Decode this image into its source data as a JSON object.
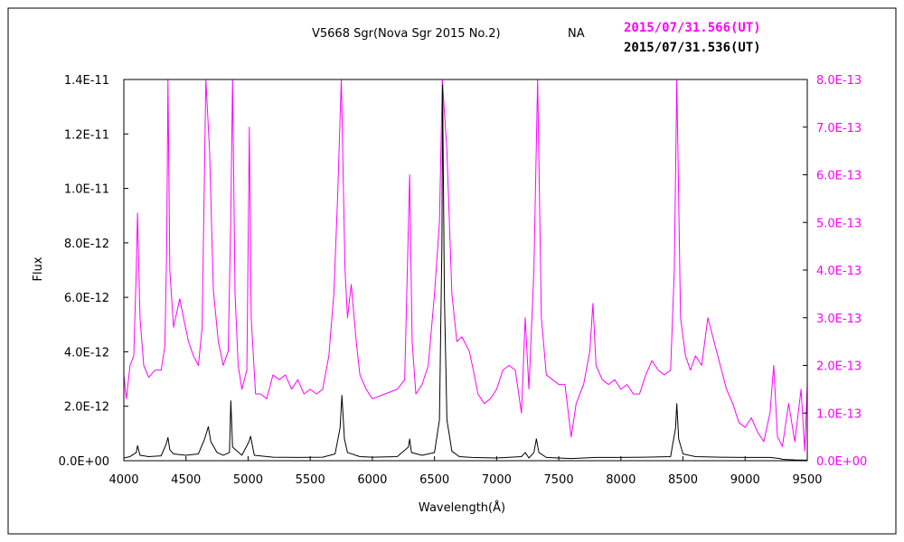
{
  "chart_data": {
    "type": "line",
    "title": "V5668 Sgr(Nova Sgr 2015 No.2)",
    "subtitle": "NA",
    "xlabel": "Wavelength(Å)",
    "ylabel": "Flux",
    "xlim": [
      4000,
      9500
    ],
    "ylim_left": [
      0,
      1.4e-11
    ],
    "ylim_right": [
      0,
      8e-13
    ],
    "x_ticks": [
      "4000",
      "4500",
      "5000",
      "5500",
      "6000",
      "6500",
      "7000",
      "7500",
      "8000",
      "8500",
      "9000",
      "9500"
    ],
    "y_ticks_left": [
      "0.0E+00",
      "2.0E-12",
      "4.0E-12",
      "6.0E-12",
      "8.0E-12",
      "1.0E-11",
      "1.2E-11",
      "1.4E-11"
    ],
    "y_ticks_right": [
      "0.0E+00",
      "1.0E-13",
      "2.0E-13",
      "3.0E-13",
      "4.0E-13",
      "5.0E-13",
      "6.0E-13",
      "7.0E-13",
      "8.0E-13"
    ],
    "grid": false,
    "colors": {
      "magenta": "#ff00ff",
      "black": "#000000",
      "frame": "#000000"
    },
    "series": [
      {
        "name": "2015/07/31.566(UT)",
        "axis": "right",
        "color": "#ff00ff",
        "points": [
          [
            4000,
            1.8e-13
          ],
          [
            4020,
            1.3e-13
          ],
          [
            4050,
            2e-13
          ],
          [
            4080,
            2.2e-13
          ],
          [
            4100,
            4e-13
          ],
          [
            4110,
            5.2e-13
          ],
          [
            4130,
            3e-13
          ],
          [
            4160,
            2e-13
          ],
          [
            4200,
            1.75e-13
          ],
          [
            4250,
            1.9e-13
          ],
          [
            4300,
            1.9e-13
          ],
          [
            4330,
            2.4e-13
          ],
          [
            4345,
            4.5e-13
          ],
          [
            4355,
            8e-13
          ],
          [
            4370,
            4e-13
          ],
          [
            4400,
            2.8e-13
          ],
          [
            4450,
            3.4e-13
          ],
          [
            4480,
            3e-13
          ],
          [
            4520,
            2.5e-13
          ],
          [
            4560,
            2.2e-13
          ],
          [
            4600,
            2e-13
          ],
          [
            4630,
            2.8e-13
          ],
          [
            4660,
            8e-13
          ],
          [
            4690,
            6.5e-13
          ],
          [
            4720,
            3.6e-13
          ],
          [
            4760,
            2.5e-13
          ],
          [
            4800,
            2e-13
          ],
          [
            4840,
            2.3e-13
          ],
          [
            4860,
            5e-13
          ],
          [
            4875,
            8e-13
          ],
          [
            4895,
            3.5e-13
          ],
          [
            4920,
            2e-13
          ],
          [
            4950,
            1.5e-13
          ],
          [
            4990,
            1.9e-13
          ],
          [
            5010,
            7e-13
          ],
          [
            5025,
            3e-13
          ],
          [
            5060,
            1.4e-13
          ],
          [
            5100,
            1.4e-13
          ],
          [
            5150,
            1.3e-13
          ],
          [
            5200,
            1.8e-13
          ],
          [
            5250,
            1.7e-13
          ],
          [
            5300,
            1.8e-13
          ],
          [
            5350,
            1.5e-13
          ],
          [
            5400,
            1.7e-13
          ],
          [
            5450,
            1.4e-13
          ],
          [
            5500,
            1.5e-13
          ],
          [
            5550,
            1.4e-13
          ],
          [
            5600,
            1.5e-13
          ],
          [
            5650,
            2.2e-13
          ],
          [
            5690,
            3.5e-13
          ],
          [
            5720,
            5.5e-13
          ],
          [
            5750,
            8e-13
          ],
          [
            5780,
            4e-13
          ],
          [
            5800,
            3e-13
          ],
          [
            5830,
            3.7e-13
          ],
          [
            5870,
            2.5e-13
          ],
          [
            5900,
            1.8e-13
          ],
          [
            5950,
            1.5e-13
          ],
          [
            6000,
            1.3e-13
          ],
          [
            6100,
            1.4e-13
          ],
          [
            6200,
            1.5e-13
          ],
          [
            6260,
            1.7e-13
          ],
          [
            6300,
            6e-13
          ],
          [
            6320,
            2.5e-13
          ],
          [
            6350,
            1.4e-13
          ],
          [
            6400,
            1.6e-13
          ],
          [
            6450,
            2e-13
          ],
          [
            6500,
            3.5e-13
          ],
          [
            6540,
            5e-13
          ],
          [
            6563,
            8e-13
          ],
          [
            6600,
            6.5e-13
          ],
          [
            6640,
            3.5e-13
          ],
          [
            6680,
            2.5e-13
          ],
          [
            6720,
            2.6e-13
          ],
          [
            6780,
            2.3e-13
          ],
          [
            6820,
            1.8e-13
          ],
          [
            6850,
            1.4e-13
          ],
          [
            6900,
            1.2e-13
          ],
          [
            6950,
            1.3e-13
          ],
          [
            7000,
            1.5e-13
          ],
          [
            7050,
            1.9e-13
          ],
          [
            7100,
            2e-13
          ],
          [
            7150,
            1.9e-13
          ],
          [
            7200,
            1e-13
          ],
          [
            7230,
            3e-13
          ],
          [
            7260,
            1.5e-13
          ],
          [
            7300,
            4e-13
          ],
          [
            7330,
            8e-13
          ],
          [
            7360,
            3e-13
          ],
          [
            7400,
            1.8e-13
          ],
          [
            7450,
            1.7e-13
          ],
          [
            7500,
            1.6e-13
          ],
          [
            7550,
            1.6e-13
          ],
          [
            7600,
            5e-14
          ],
          [
            7640,
            1.2e-13
          ],
          [
            7700,
            1.6e-13
          ],
          [
            7750,
            2.3e-13
          ],
          [
            7775,
            3.3e-13
          ],
          [
            7800,
            2e-13
          ],
          [
            7850,
            1.7e-13
          ],
          [
            7900,
            1.6e-13
          ],
          [
            7950,
            1.7e-13
          ],
          [
            8000,
            1.5e-13
          ],
          [
            8050,
            1.6e-13
          ],
          [
            8100,
            1.4e-13
          ],
          [
            8150,
            1.4e-13
          ],
          [
            8200,
            1.8e-13
          ],
          [
            8250,
            2.1e-13
          ],
          [
            8300,
            1.9e-13
          ],
          [
            8350,
            1.8e-13
          ],
          [
            8400,
            1.9e-13
          ],
          [
            8430,
            4e-13
          ],
          [
            8450,
            8e-13
          ],
          [
            8480,
            3e-13
          ],
          [
            8520,
            2.2e-13
          ],
          [
            8560,
            1.9e-13
          ],
          [
            8600,
            2.2e-13
          ],
          [
            8650,
            2e-13
          ],
          [
            8700,
            3e-13
          ],
          [
            8750,
            2.5e-13
          ],
          [
            8800,
            2e-13
          ],
          [
            8850,
            1.5e-13
          ],
          [
            8900,
            1.2e-13
          ],
          [
            8950,
            8e-14
          ],
          [
            9000,
            7e-14
          ],
          [
            9050,
            9e-14
          ],
          [
            9100,
            6e-14
          ],
          [
            9150,
            4e-14
          ],
          [
            9200,
            1e-13
          ],
          [
            9230,
            2e-13
          ],
          [
            9260,
            5e-14
          ],
          [
            9300,
            3e-14
          ],
          [
            9350,
            1.2e-13
          ],
          [
            9400,
            4e-14
          ],
          [
            9450,
            1.5e-13
          ],
          [
            9480,
            2e-14
          ],
          [
            9500,
            1.6e-13
          ]
        ]
      },
      {
        "name": "2015/07/31.536(UT)",
        "axis": "left",
        "color": "#000000",
        "points": [
          [
            4000,
            1e-13
          ],
          [
            4050,
            1.5e-13
          ],
          [
            4100,
            3e-13
          ],
          [
            4110,
            5.5e-13
          ],
          [
            4130,
            2e-13
          ],
          [
            4200,
            1.5e-13
          ],
          [
            4300,
            1.8e-13
          ],
          [
            4340,
            6e-13
          ],
          [
            4355,
            8.5e-13
          ],
          [
            4370,
            4e-13
          ],
          [
            4400,
            2.5e-13
          ],
          [
            4500,
            2e-13
          ],
          [
            4600,
            2.5e-13
          ],
          [
            4650,
            8e-13
          ],
          [
            4680,
            1.25e-12
          ],
          [
            4700,
            7e-13
          ],
          [
            4750,
            3e-13
          ],
          [
            4800,
            2e-13
          ],
          [
            4850,
            3e-13
          ],
          [
            4861,
            2.2e-12
          ],
          [
            4875,
            5e-13
          ],
          [
            4950,
            2e-13
          ],
          [
            5007,
            7e-13
          ],
          [
            5020,
            9e-13
          ],
          [
            5050,
            2e-13
          ],
          [
            5200,
            1.3e-13
          ],
          [
            5400,
            1.2e-13
          ],
          [
            5600,
            1.3e-13
          ],
          [
            5700,
            2.5e-13
          ],
          [
            5740,
            1.2e-12
          ],
          [
            5755,
            2.4e-12
          ],
          [
            5775,
            8e-13
          ],
          [
            5800,
            3e-13
          ],
          [
            5900,
            1.5e-13
          ],
          [
            6000,
            1.3e-13
          ],
          [
            6200,
            1.5e-13
          ],
          [
            6290,
            5e-13
          ],
          [
            6300,
            8e-13
          ],
          [
            6315,
            3e-13
          ],
          [
            6400,
            2e-13
          ],
          [
            6500,
            3e-13
          ],
          [
            6540,
            1.5e-12
          ],
          [
            6560,
            8e-12
          ],
          [
            6565,
            1.38e-11
          ],
          [
            6580,
            6e-12
          ],
          [
            6600,
            1.5e-12
          ],
          [
            6640,
            3.5e-13
          ],
          [
            6700,
            1.5e-13
          ],
          [
            6800,
            1.2e-13
          ],
          [
            7000,
            1e-13
          ],
          [
            7200,
            1.5e-13
          ],
          [
            7230,
            3e-13
          ],
          [
            7260,
            1e-13
          ],
          [
            7300,
            3e-13
          ],
          [
            7320,
            8e-13
          ],
          [
            7340,
            3e-13
          ],
          [
            7400,
            1.2e-13
          ],
          [
            7600,
            8e-14
          ],
          [
            7700,
            1e-13
          ],
          [
            7800,
            1.2e-13
          ],
          [
            8000,
            1.2e-13
          ],
          [
            8200,
            1.3e-13
          ],
          [
            8400,
            1.5e-13
          ],
          [
            8440,
            1.2e-12
          ],
          [
            8450,
            2.1e-12
          ],
          [
            8465,
            8e-13
          ],
          [
            8500,
            2.5e-13
          ],
          [
            8600,
            1.5e-13
          ],
          [
            8800,
            1.3e-13
          ],
          [
            9000,
            1.2e-13
          ],
          [
            9200,
            1.2e-13
          ],
          [
            9280,
            8e-14
          ],
          [
            9300,
            5e-14
          ],
          [
            9400,
            3e-14
          ],
          [
            9500,
            2e-14
          ]
        ]
      }
    ]
  }
}
